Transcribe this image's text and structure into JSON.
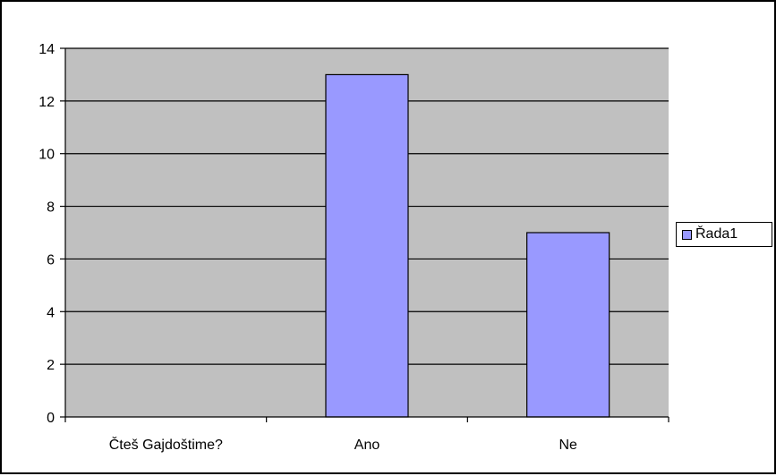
{
  "colors": {
    "plot_background": "#c0c0c0",
    "bar_fill": "#9999ff",
    "gridline": "#000000"
  },
  "chart_data": {
    "type": "bar",
    "categories": [
      "Čteš Gajdoštime?",
      "Ano",
      "Ne"
    ],
    "series": [
      {
        "name": "Řada1",
        "values": [
          0,
          13,
          7
        ]
      }
    ],
    "y_ticks": [
      "0",
      "2",
      "4",
      "6",
      "8",
      "10",
      "12",
      "14"
    ],
    "ylim": [
      0,
      14
    ],
    "grid": true,
    "legend_position": "right",
    "title": "",
    "xlabel": "",
    "ylabel": ""
  }
}
